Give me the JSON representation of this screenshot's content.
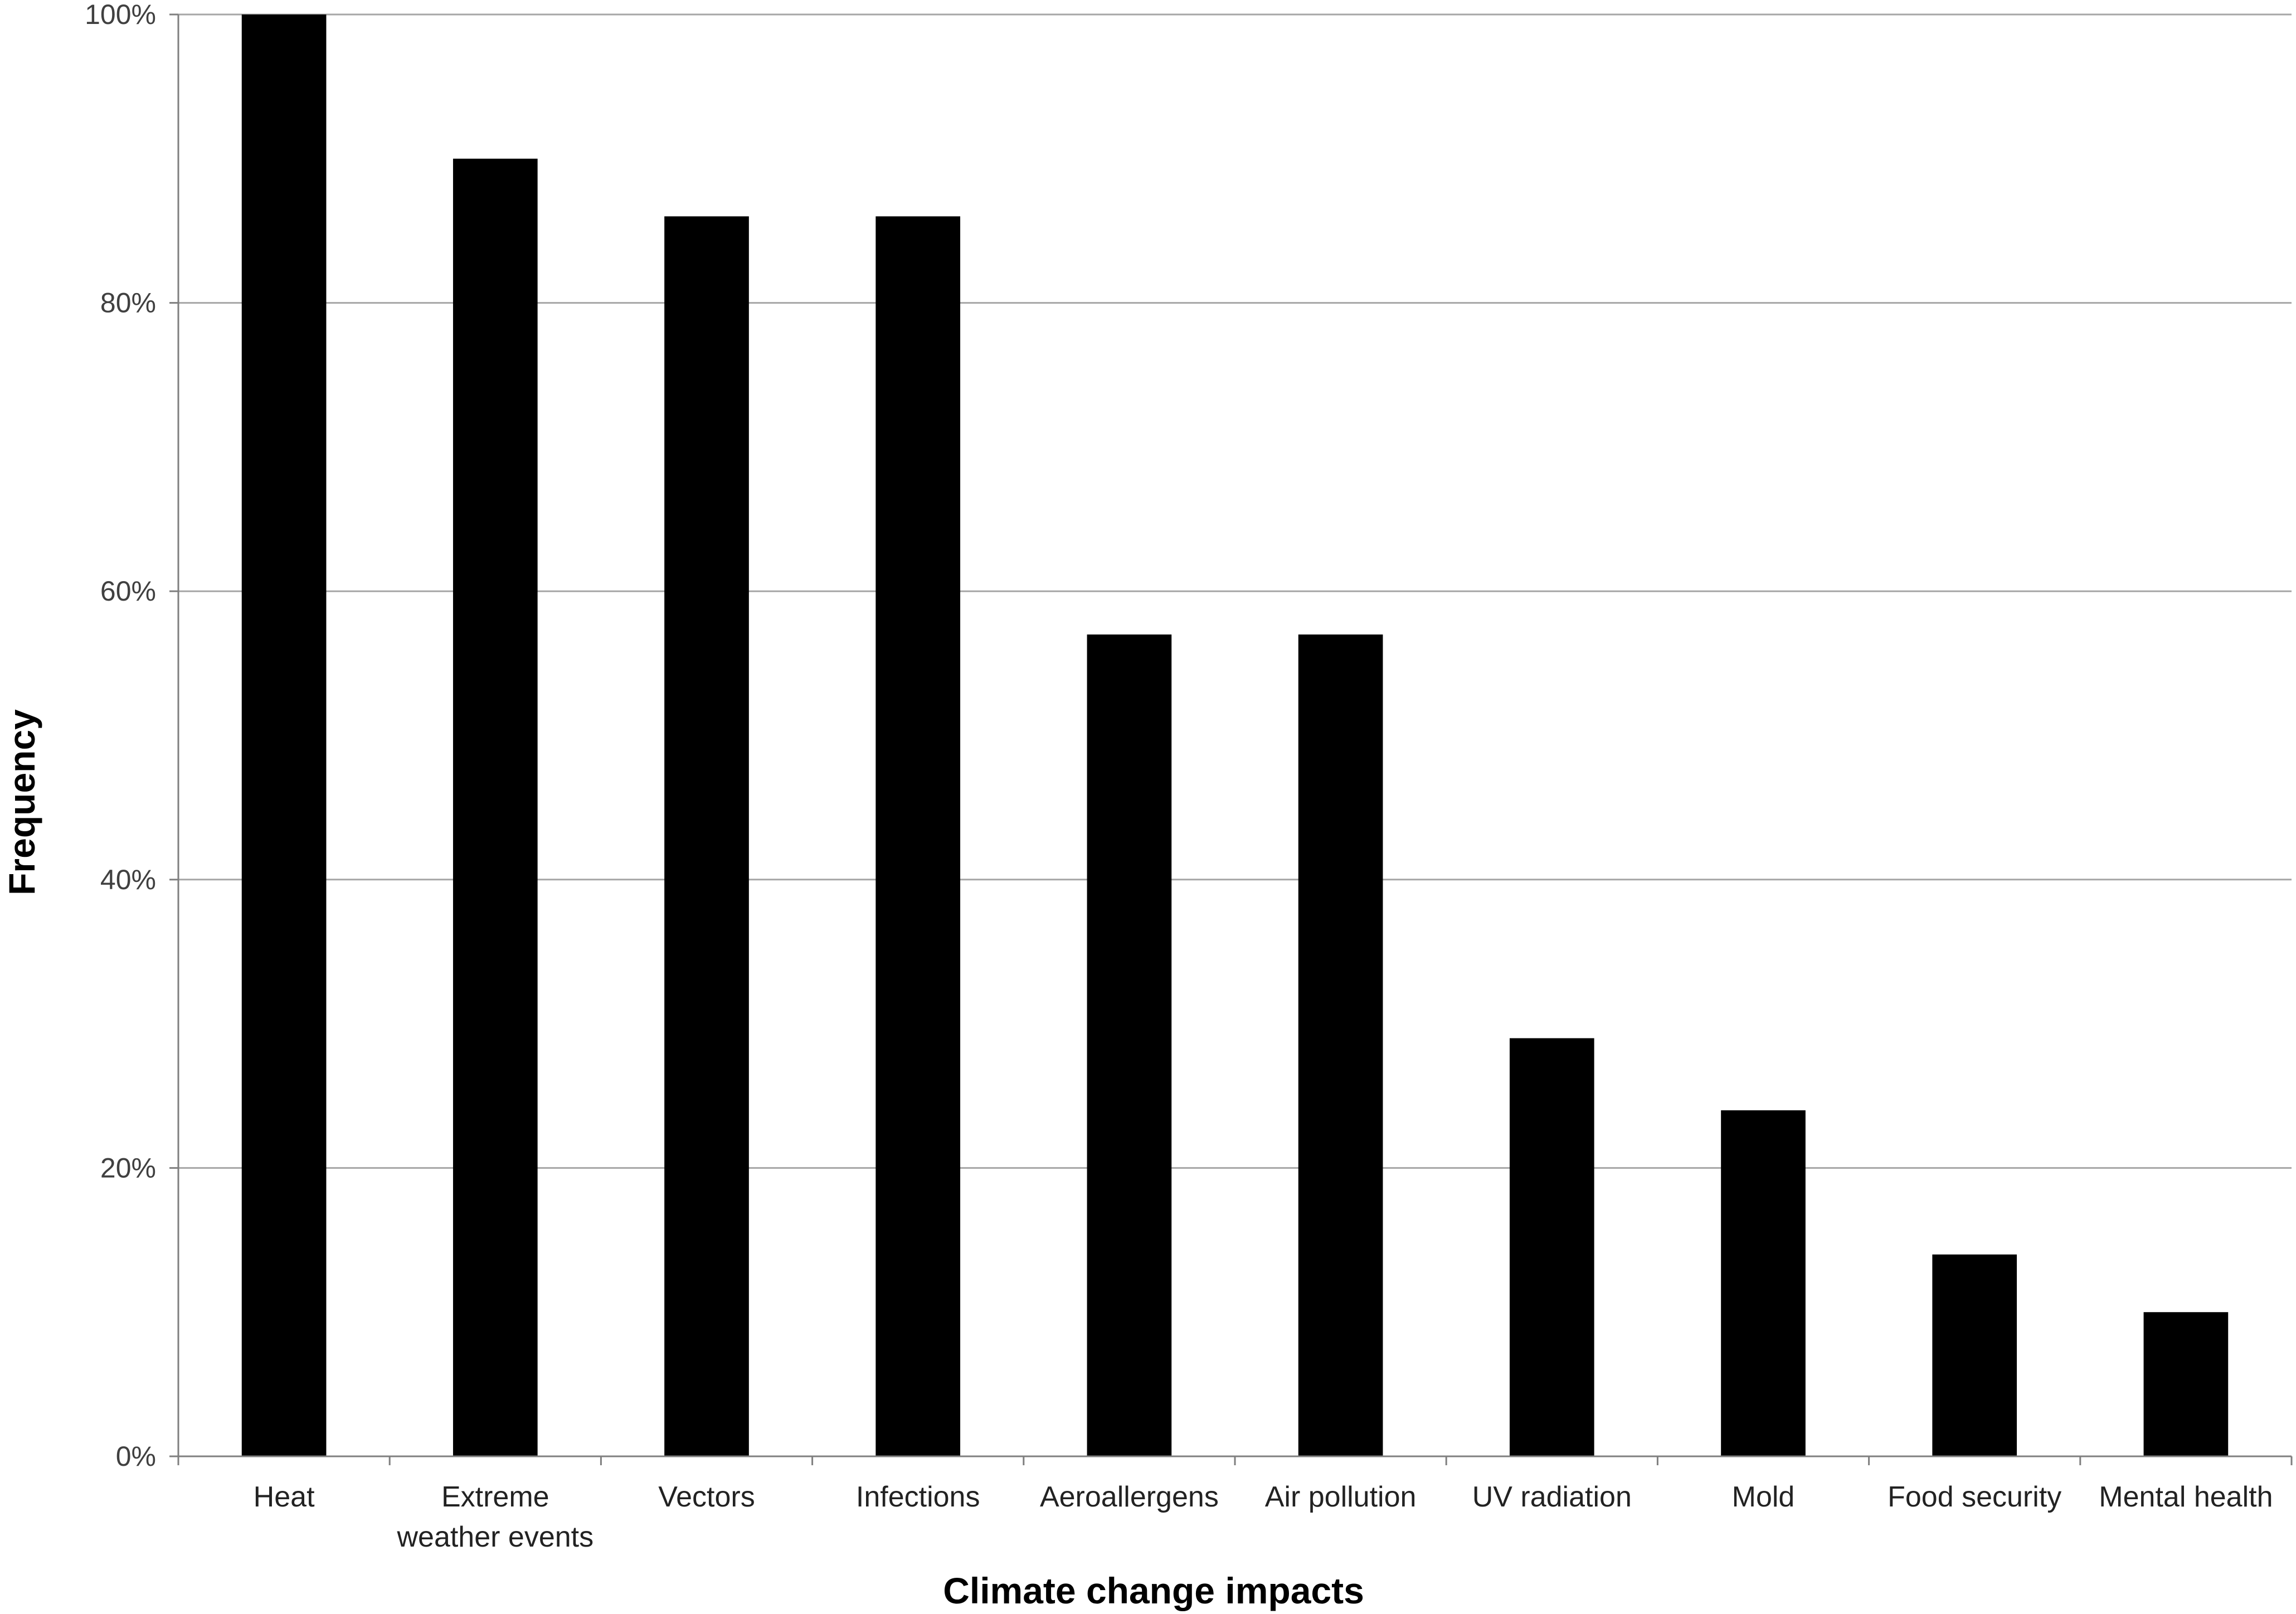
{
  "chart_data": {
    "type": "bar",
    "title": "",
    "xlabel": "Climate change impacts",
    "ylabel": "Frequency",
    "categories": [
      [
        "Heat"
      ],
      [
        "Extreme",
        "weather events"
      ],
      [
        "Vectors"
      ],
      [
        "Infections"
      ],
      [
        "Aeroallergens"
      ],
      [
        "Air pollution"
      ],
      [
        "UV radiation"
      ],
      [
        "Mold"
      ],
      [
        "Food security"
      ],
      [
        "Mental health"
      ]
    ],
    "values": [
      100,
      90,
      86,
      86,
      57,
      57,
      29,
      24,
      14,
      10
    ],
    "ylim": [
      0,
      100
    ],
    "yticks": [
      0,
      20,
      40,
      60,
      80,
      100
    ],
    "ytick_labels": [
      "0%",
      "20%",
      "40%",
      "60%",
      "80%",
      "100%"
    ],
    "grid": true,
    "legend": "none",
    "colors": {
      "bar": "#000000",
      "grid": "#a6a6a6",
      "axis": "#7f7f7f"
    }
  }
}
